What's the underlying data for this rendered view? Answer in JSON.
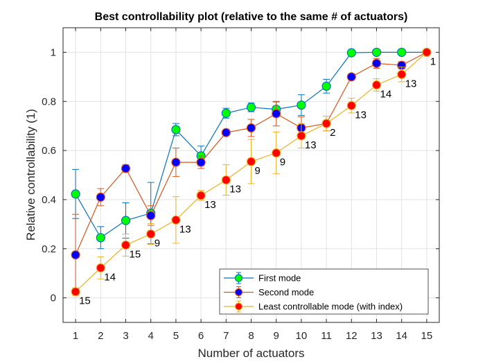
{
  "chart_data": {
    "type": "line",
    "title": "Best controllability plot (relative to the same # of actuators)",
    "xlabel": "Number of actuators",
    "ylabel": "Relative controllability (1)",
    "xlim": [
      0.5,
      15.5
    ],
    "ylim": [
      -0.1,
      1.1
    ],
    "grid": true,
    "legend_position": "bottom-right",
    "x": [
      1,
      2,
      3,
      4,
      5,
      6,
      7,
      8,
      9,
      10,
      11,
      12,
      13,
      14,
      15
    ],
    "x_tick_labels": [
      "1",
      "2",
      "3",
      "4",
      "5",
      "6",
      "7",
      "8",
      "9",
      "10",
      "11",
      "12",
      "13",
      "14",
      "15"
    ],
    "y_ticks": [
      0,
      0.2,
      0.4,
      0.6,
      0.8,
      1
    ],
    "y_tick_labels": [
      "0",
      "0.2",
      "0.4",
      "0.6",
      "0.8",
      "1"
    ],
    "series": [
      {
        "name": "First mode",
        "line_color": "#0072BD",
        "marker_color": "#00FF00",
        "values": [
          0.423,
          0.245,
          0.315,
          0.345,
          0.685,
          0.578,
          0.752,
          0.776,
          0.768,
          0.785,
          0.862,
          0.998,
          1.0,
          1.0,
          1.0
        ],
        "errors": [
          0.1,
          0.045,
          0.072,
          0.125,
          0.025,
          0.04,
          0.02,
          0.018,
          0.03,
          0.042,
          0.028,
          0.005,
          0.004,
          0.003,
          0.0
        ]
      },
      {
        "name": "Second mode",
        "line_color": "#D95319",
        "marker_color": "#0000FF",
        "values": [
          0.175,
          0.41,
          0.527,
          0.335,
          0.552,
          0.552,
          0.673,
          0.692,
          0.75,
          0.692,
          0.71,
          0.9,
          0.955,
          0.947,
          1.0
        ],
        "errors": [
          0.165,
          0.035,
          0.015,
          0.04,
          0.058,
          0.025,
          0.012,
          0.035,
          0.05,
          0.045,
          0.03,
          0.012,
          0.02,
          0.015,
          0.0
        ]
      },
      {
        "name": "Least controllable mode (with index)",
        "line_color": "#EDB120",
        "marker_color": "#FF0000",
        "values": [
          0.025,
          0.122,
          0.215,
          0.26,
          0.317,
          0.417,
          0.48,
          0.555,
          0.59,
          0.66,
          0.71,
          0.783,
          0.867,
          0.91,
          1.0
        ],
        "errors": [
          0.015,
          0.045,
          0.045,
          0.042,
          0.095,
          0.02,
          0.062,
          0.09,
          0.085,
          0.05,
          0.03,
          0.03,
          0.025,
          0.03,
          0.0
        ],
        "point_labels": [
          "15",
          "14",
          "15",
          "9",
          "13",
          "13",
          "13",
          "9",
          "9",
          "13",
          "2",
          "13",
          "14",
          "13",
          "1"
        ]
      }
    ]
  }
}
